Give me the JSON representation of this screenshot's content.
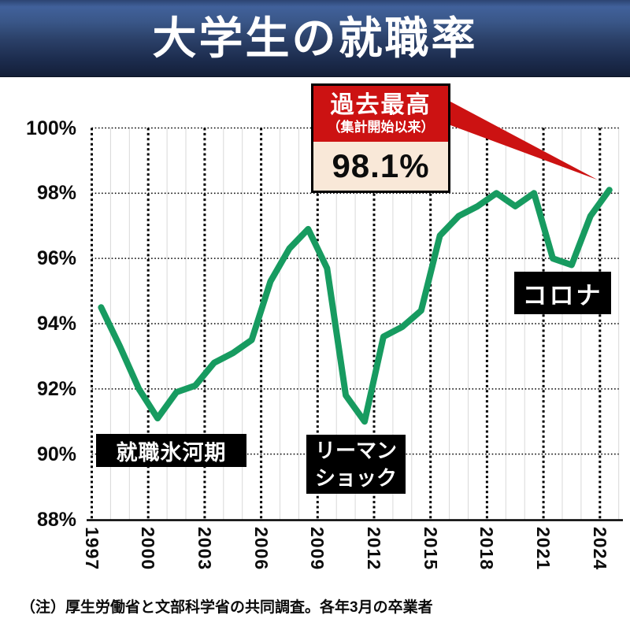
{
  "header": {
    "title": "大学生の就職率"
  },
  "callout": {
    "title": "過去最高",
    "subtitle": "（集計開始以来）",
    "value": "98.1%"
  },
  "footnote": {
    "text": "（注）厚生労働省と文部科学省の共同調査。各年3月の卒業者"
  },
  "colors": {
    "line_green": "#179b60",
    "callout_red": "#cc1212",
    "callout_cream": "#f9e8d8",
    "tag_background": "#000000",
    "tag_text": "#ffffff",
    "banner_navy_top": "#41619b",
    "banner_navy_bottom": "#141f38"
  },
  "chart_data": {
    "type": "line",
    "title": "大学生の就職率",
    "xlabel": "",
    "ylabel": "",
    "x": [
      1997,
      1998,
      1999,
      2000,
      2001,
      2002,
      2003,
      2004,
      2005,
      2006,
      2007,
      2008,
      2009,
      2010,
      2011,
      2012,
      2013,
      2014,
      2015,
      2016,
      2017,
      2018,
      2019,
      2020,
      2021,
      2022,
      2023,
      2024
    ],
    "series": [
      {
        "name": "就職率",
        "values": [
          94.5,
          93.3,
          92.0,
          91.1,
          91.9,
          92.1,
          92.8,
          93.1,
          93.5,
          95.3,
          96.3,
          96.9,
          95.7,
          91.8,
          91.0,
          93.6,
          93.9,
          94.4,
          96.7,
          97.3,
          97.6,
          98.0,
          97.6,
          98.0,
          96.0,
          95.8,
          97.3,
          98.1
        ]
      }
    ],
    "ylim": [
      88,
      100
    ],
    "yticks": [
      100,
      98,
      96,
      94,
      92,
      90,
      88
    ],
    "y_tick_labels": [
      "100%",
      "98%",
      "96%",
      "94%",
      "92%",
      "90%",
      "88%"
    ],
    "xticks": [
      1997,
      2000,
      2003,
      2006,
      2009,
      2012,
      2015,
      2018,
      2021,
      2024
    ],
    "x_tick_labels": [
      "1997",
      "2000",
      "2003",
      "2006",
      "2009",
      "2012",
      "2015",
      "2018",
      "2021",
      "2024"
    ],
    "grid": true,
    "legend": false,
    "line_color": "#179b60",
    "annotations": [
      {
        "text": "就職氷河期",
        "target": "2000年前後の低下"
      },
      {
        "text": "リーマン\nショック",
        "target": "2011年の低下"
      },
      {
        "text": "コロナ",
        "target": "2021-2022年の低下"
      },
      {
        "text": "過去最高（集計開始以来） 98.1%",
        "target": "2024"
      }
    ]
  }
}
